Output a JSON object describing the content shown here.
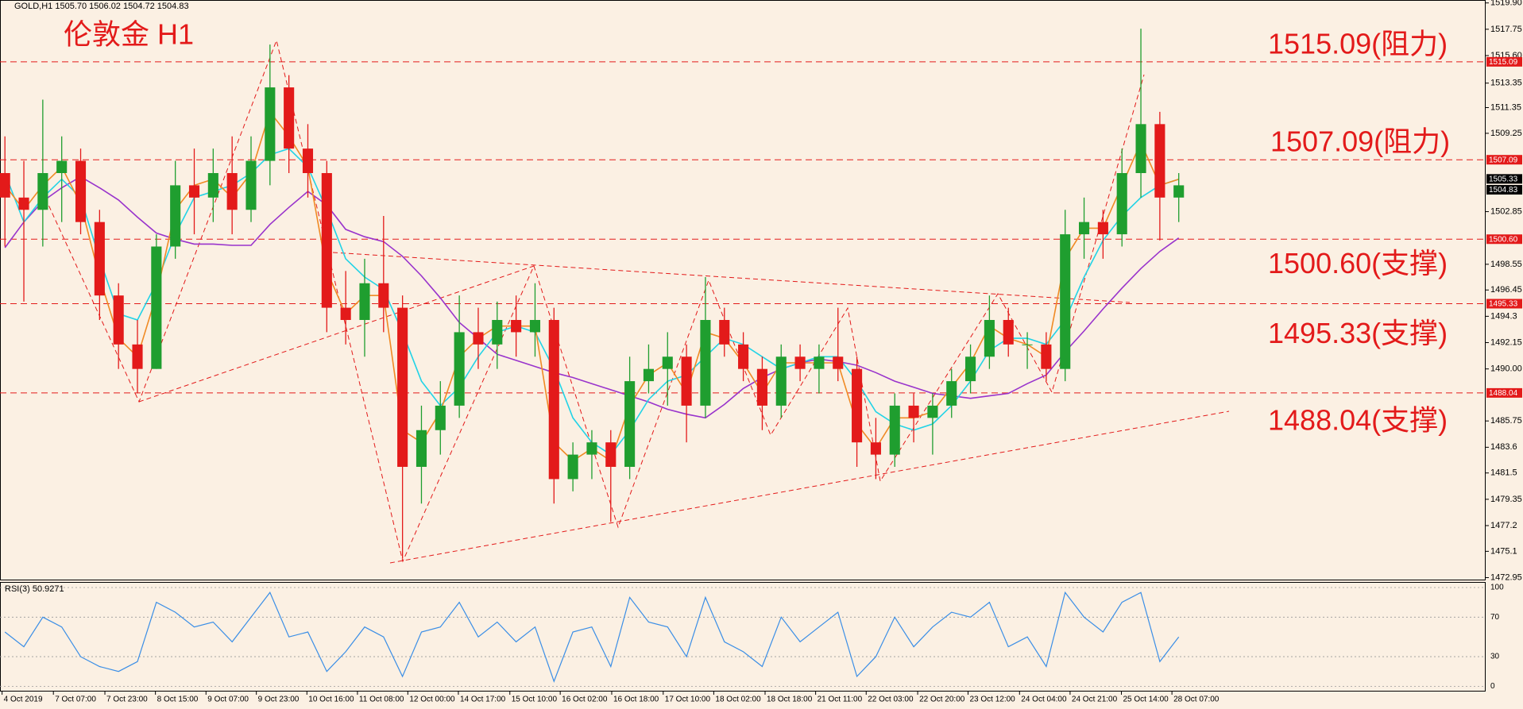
{
  "chart_data": [
    {
      "type": "candlestick",
      "header": "GOLD,H1  1505.70 1506.02 1504.72 1504.83",
      "title": "伦敦金 H1",
      "x": [
        0,
        1,
        2,
        3,
        4,
        5,
        6,
        7,
        8,
        9,
        10,
        11,
        12,
        13,
        14,
        15,
        16,
        17,
        18,
        19,
        20,
        21,
        22,
        23,
        24,
        25,
        26,
        27,
        28,
        29,
        30,
        31,
        32,
        33,
        34,
        35,
        36,
        37,
        38,
        39,
        40,
        41,
        42,
        43,
        44,
        45,
        46,
        47,
        48,
        49,
        50,
        51,
        52,
        53,
        54,
        55,
        56,
        57,
        58,
        59,
        60,
        61,
        62
      ],
      "open": [
        1506,
        1504,
        1503,
        1506,
        1507,
        1502,
        1496,
        1492,
        1490,
        1500,
        1505,
        1504,
        1506,
        1503,
        1507,
        1513,
        1508,
        1506,
        1495,
        1494,
        1497,
        1495,
        1482,
        1485,
        1487,
        1493,
        1492,
        1494,
        1493,
        1494,
        1481,
        1483,
        1484,
        1482,
        1489,
        1490,
        1491,
        1487,
        1494,
        1492,
        1490,
        1487,
        1491,
        1490,
        1491,
        1490,
        1484,
        1483,
        1487,
        1486,
        1487,
        1489,
        1491,
        1494,
        1492,
        1492,
        1490,
        1501,
        1502,
        1501,
        1506,
        1510,
        1504
      ],
      "high": [
        1509,
        1507,
        1512,
        1509,
        1508,
        1503,
        1497,
        1494,
        1501,
        1507,
        1508,
        1508,
        1509,
        1509,
        1516.5,
        1514,
        1510,
        1507,
        1498,
        1499,
        1502.5,
        1496,
        1487,
        1489,
        1496,
        1495,
        1495.5,
        1496,
        1497,
        1495,
        1484,
        1485,
        1485,
        1491,
        1492,
        1493,
        1492,
        1497.5,
        1495,
        1493,
        1491,
        1492,
        1492,
        1492,
        1495,
        1491,
        1486,
        1488,
        1488,
        1488,
        1490,
        1492,
        1496,
        1495,
        1493,
        1493,
        1503,
        1504,
        1503,
        1508,
        1517.8,
        1511,
        1506
      ],
      "low": [
        1500,
        1495.5,
        1500,
        1502,
        1501,
        1494,
        1490,
        1488,
        1490,
        1499,
        1501,
        1502,
        1501,
        1502,
        1505,
        1506,
        1504,
        1493,
        1492,
        1491,
        1493,
        1474.5,
        1479,
        1483,
        1486,
        1490,
        1490,
        1491,
        1491,
        1479,
        1480,
        1481,
        1477.5,
        1481,
        1488,
        1487,
        1484,
        1486,
        1491,
        1489,
        1485,
        1486,
        1489,
        1488,
        1489,
        1482,
        1481,
        1482,
        1484,
        1483,
        1486,
        1488,
        1490,
        1491,
        1490,
        1489,
        1489,
        1499,
        1499,
        1500,
        1504,
        1500.5,
        1502
      ],
      "close": [
        1504,
        1503,
        1506,
        1507,
        1502,
        1496,
        1492,
        1490,
        1500,
        1505,
        1504,
        1506,
        1503,
        1507,
        1513,
        1508,
        1506,
        1495,
        1494,
        1497,
        1495,
        1482,
        1485,
        1487,
        1493,
        1492,
        1494,
        1493,
        1494,
        1481,
        1483,
        1484,
        1482,
        1489,
        1490,
        1491,
        1487,
        1494,
        1492,
        1490,
        1487,
        1491,
        1490,
        1491,
        1490,
        1484,
        1483,
        1487,
        1486,
        1487,
        1489,
        1491,
        1494,
        1492,
        1492,
        1490,
        1501,
        1502,
        1501,
        1506,
        1510,
        1504,
        1505
      ],
      "up_color": "#1f9e2f",
      "down_color": "#e31a1a",
      "lines": [
        {
          "color": "#9933cc",
          "values": [
            1499.9,
            1502,
            1503.7,
            1504.8,
            1505.7,
            1504.8,
            1503.8,
            1502.4,
            1501.1,
            1500.6,
            1500.2,
            1500.2,
            1500.1,
            1500.1,
            1501.8,
            1503.2,
            1504.5,
            1503.4,
            1501.4,
            1500.8,
            1500.4,
            1499.2,
            1497.6,
            1495.8,
            1493.8,
            1492.5,
            1491.2,
            1490.7,
            1490.2,
            1489.7,
            1489.3,
            1488.8,
            1488.3,
            1487.8,
            1487.3,
            1486.7,
            1486.3,
            1486.0,
            1487.1,
            1488.4,
            1489.3,
            1490.0,
            1490.5,
            1490.8,
            1490.6,
            1490.3,
            1489.7,
            1489.0,
            1488.5,
            1488.0,
            1487.8,
            1487.6,
            1487.8,
            1488.0,
            1488.8,
            1489.5,
            1491.4,
            1493.1,
            1494.9,
            1496.6,
            1498.2,
            1499.6,
            1500.7
          ]
        },
        {
          "color": "#22d3e6",
          "values": [
            1506,
            1502,
            1504,
            1505.5,
            1504,
            1499,
            1494.5,
            1494,
            1497,
            1501,
            1504,
            1504.5,
            1505,
            1506,
            1507.5,
            1508,
            1506.5,
            1503,
            1499,
            1497.5,
            1496.5,
            1493,
            1489,
            1487,
            1488.5,
            1491,
            1493,
            1493.5,
            1493,
            1490,
            1486,
            1484,
            1483,
            1485,
            1487.5,
            1489,
            1489.5,
            1491,
            1492.5,
            1492,
            1491,
            1490,
            1490.5,
            1491,
            1491,
            1489,
            1486.5,
            1485.5,
            1485,
            1485.5,
            1487,
            1489,
            1491.5,
            1492.5,
            1492.5,
            1492,
            1494,
            1497.5,
            1500.5,
            1502.5,
            1504,
            1505,
            1505.5
          ]
        },
        {
          "color": "#f08a24",
          "values": [
            1505,
            1503,
            1505,
            1506.5,
            1503.5,
            1497.5,
            1492.5,
            1491,
            1496,
            1503,
            1505,
            1505.5,
            1504,
            1506,
            1511,
            1509,
            1506.5,
            1498,
            1494.5,
            1496,
            1496,
            1485,
            1484,
            1486.5,
            1491,
            1492.5,
            1493.5,
            1493.5,
            1493.5,
            1484,
            1482.5,
            1483.5,
            1482.5,
            1487,
            1489.5,
            1490.5,
            1488,
            1493,
            1492.5,
            1490.5,
            1488,
            1490.5,
            1490.5,
            1490.5,
            1490.5,
            1485.5,
            1483.5,
            1486,
            1486,
            1486.5,
            1488.5,
            1490.5,
            1493.5,
            1492.5,
            1492,
            1491,
            1499,
            1501.5,
            1501.5,
            1505,
            1508.5,
            1505,
            1505.5
          ]
        }
      ],
      "xlim": [
        -0.26,
        78.21
      ],
      "ylim": [
        1472.79,
        1520.14
      ],
      "yticks": [
        {
          "value": 1519.9,
          "label": "1519.90"
        },
        1517.75,
        {
          "value": 1515.6,
          "label": "1515.60"
        },
        1513.35,
        1511.35,
        1509.25,
        1502.85,
        1498.55,
        1496.45,
        1494.3,
        1492.15,
        {
          "value": 1490,
          "label": "1490.00"
        },
        1485.75,
        1483.6,
        1481.5,
        1479.35,
        1477.2,
        1475.1,
        1472.95
      ],
      "xticks": [
        {
          "value": -0.15,
          "label": "4 Oct 2019"
        },
        {
          "value": 2.56,
          "label": "7 Oct 07:00"
        },
        {
          "value": 5.28,
          "label": "7 Oct 23:00"
        },
        {
          "value": 7.95,
          "label": "8 Oct 15:00"
        },
        {
          "value": 10.62,
          "label": "9 Oct 07:00"
        },
        {
          "value": 13.28,
          "label": "9 Oct 23:00"
        },
        {
          "value": 15.95,
          "label": "10 Oct 16:00"
        },
        {
          "value": 18.62,
          "label": "11 Oct 08:00"
        },
        {
          "value": 21.28,
          "label": "12 Oct 00:00"
        },
        {
          "value": 23.95,
          "label": "14 Oct 17:00"
        },
        {
          "value": 26.67,
          "label": "15 Oct 10:00"
        },
        {
          "value": 29.33,
          "label": "16 Oct 02:00"
        },
        {
          "value": 32.05,
          "label": "16 Oct 18:00"
        },
        {
          "value": 34.77,
          "label": "17 Oct 10:00"
        },
        {
          "value": 37.44,
          "label": "18 Oct 02:00"
        },
        {
          "value": 40.15,
          "label": "18 Oct 18:00"
        },
        {
          "value": 42.82,
          "label": "21 Oct 11:00"
        },
        {
          "value": 45.49,
          "label": "22 Oct 03:00"
        },
        {
          "value": 48.21,
          "label": "22 Oct 20:00"
        },
        {
          "value": 50.87,
          "label": "23 Oct 12:00"
        },
        {
          "value": 53.59,
          "label": "24 Oct 04:00"
        },
        {
          "value": 56.26,
          "label": "24 Oct 21:00"
        },
        {
          "value": 58.97,
          "label": "25 Oct 14:00"
        },
        {
          "value": 61.64,
          "label": "28 Oct 07:00"
        }
      ],
      "levels": [
        {
          "value": 1515.09,
          "tag": "1515.09",
          "annotation": "1515.09(阻力)"
        },
        {
          "value": 1507.09,
          "tag": "1507.09",
          "annotation": "1507.09(阻力)"
        },
        {
          "value": 1500.6,
          "tag": "1500.60",
          "annotation": "1500.60(支撑)"
        },
        {
          "value": 1495.33,
          "tag": "1495.33",
          "annotation": "1495.33(支撑)"
        },
        {
          "value": 1488.04,
          "tag": "1488.04",
          "annotation": "1488.04(支撑)"
        }
      ],
      "level_color": "#e31a1a",
      "price_markers": [
        1505.33,
        1504.83
      ]
    },
    {
      "type": "line",
      "label": "RSI(3) 50.9271",
      "color": "#3a8ee6",
      "x": [
        0,
        1,
        2,
        3,
        4,
        5,
        6,
        7,
        8,
        9,
        10,
        11,
        12,
        13,
        14,
        15,
        16,
        17,
        18,
        19,
        20,
        21,
        22,
        23,
        24,
        25,
        26,
        27,
        28,
        29,
        30,
        31,
        32,
        33,
        34,
        35,
        36,
        37,
        38,
        39,
        40,
        41,
        42,
        43,
        44,
        45,
        46,
        47,
        48,
        49,
        50,
        51,
        52,
        53,
        54,
        55,
        56,
        57,
        58,
        59,
        60,
        61,
        62
      ],
      "values": [
        55,
        40,
        70,
        60,
        30,
        20,
        15,
        25,
        85,
        75,
        60,
        65,
        45,
        70,
        95,
        50,
        55,
        15,
        35,
        60,
        50,
        10,
        55,
        60,
        85,
        50,
        65,
        45,
        60,
        5,
        55,
        60,
        20,
        90,
        65,
        60,
        30,
        90,
        45,
        35,
        20,
        70,
        45,
        60,
        75,
        10,
        30,
        70,
        40,
        60,
        75,
        70,
        85,
        40,
        50,
        20,
        95,
        70,
        55,
        85,
        95,
        25,
        50
      ],
      "xlim": [
        -0.26,
        78.21
      ],
      "ylim": [
        -5.3,
        105.6
      ],
      "yticks": [
        100,
        70,
        30,
        0
      ]
    }
  ]
}
